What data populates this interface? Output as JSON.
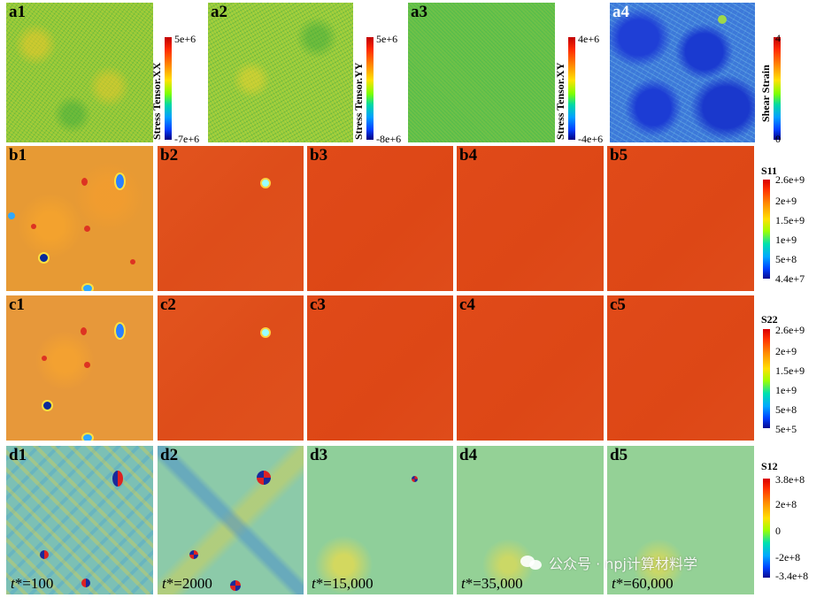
{
  "panels": {
    "a1": "a1",
    "a2": "a2",
    "a3": "a3",
    "a4": "a4",
    "b1": "b1",
    "b2": "b2",
    "b3": "b3",
    "b4": "b4",
    "b5": "b5",
    "c1": "c1",
    "c2": "c2",
    "c3": "c3",
    "c4": "c4",
    "c5": "c5",
    "d1": "d1",
    "d2": "d2",
    "d3": "d3",
    "d4": "d4",
    "d5": "d5"
  },
  "time_labels": {
    "prefix": "t",
    "d1": "*=100",
    "d2": "*=2000",
    "d3": "*=15,000",
    "d4": "*=35,000",
    "d5": "*=60,000"
  },
  "colorbars": {
    "a1": {
      "title": "Stress Tensor.XX",
      "max": "5e+6",
      "min": "-7e+6"
    },
    "a2": {
      "title": "Stress Tensor.YY",
      "max": "5e+6",
      "min": "-8e+6"
    },
    "a3": {
      "title": "Stress Tensor.XY",
      "max": "4e+6",
      "min": "-4e+6"
    },
    "a4": {
      "title": "Shear Strain",
      "max": "4",
      "min": "0"
    },
    "s11": {
      "title": "S11",
      "ticks": [
        "2.6e+9",
        "2e+9",
        "1.5e+9",
        "1e+9",
        "5e+8",
        "4.4e+7"
      ]
    },
    "s22": {
      "title": "S22",
      "ticks": [
        "2.6e+9",
        "2e+9",
        "1.5e+9",
        "1e+9",
        "5e+8",
        "5e+5"
      ]
    },
    "s12": {
      "title": "S12",
      "ticks": [
        "3.8e+8",
        "2e+8",
        "0",
        "-2e+8",
        "-3.4e+8"
      ]
    }
  },
  "watermark": "公众号 · npj计算材料学",
  "colors": {
    "a_field": "#8fc93a",
    "b_uniform": "#de4d1a",
    "b1_field": "#e79a34",
    "d_field": "#8fcf9a"
  }
}
